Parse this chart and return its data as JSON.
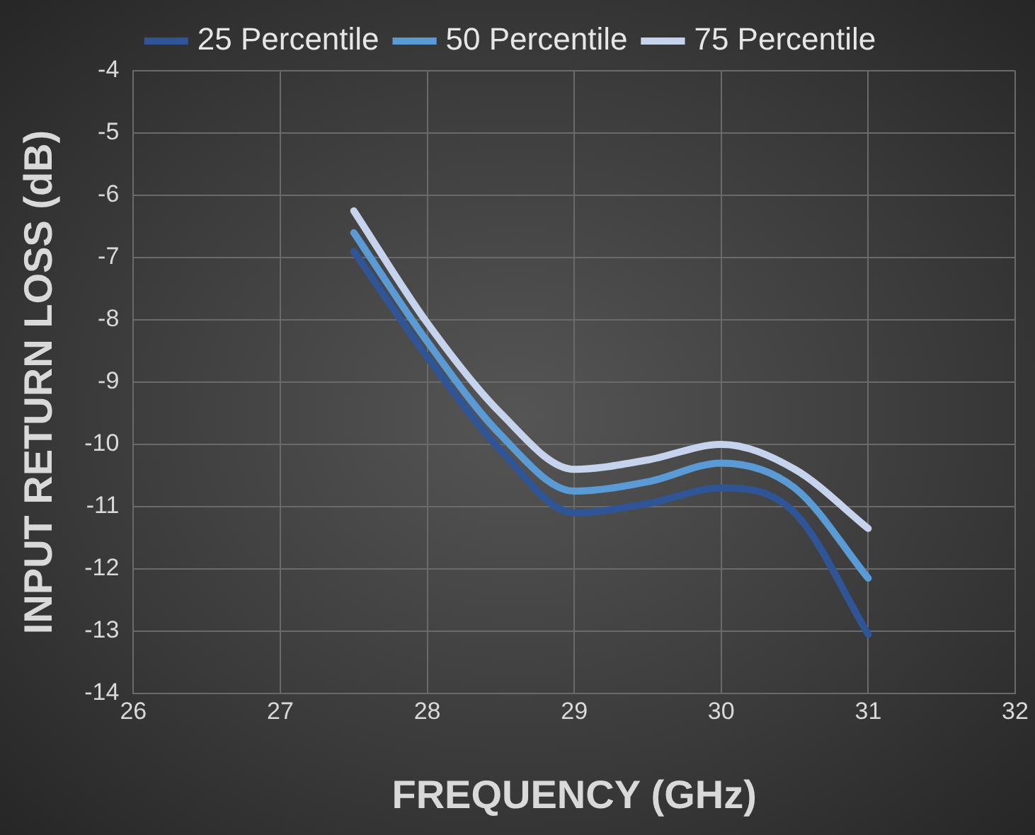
{
  "chart_data": {
    "type": "line",
    "xlabel": "FREQUENCY (GHz)",
    "ylabel": "INPUT RETURN LOSS (dB)",
    "x": [
      27.5,
      28,
      28.5,
      29,
      29.5,
      30,
      30.5,
      31
    ],
    "series": [
      {
        "name": "25 Percentile",
        "color": "#2f5597",
        "values": [
          -6.9,
          -8.6,
          -10.1,
          -11.1,
          -10.95,
          -10.7,
          -11.1,
          -13.05
        ]
      },
      {
        "name": "50 Percentile",
        "color": "#5b9bd5",
        "values": [
          -6.6,
          -8.35,
          -9.85,
          -10.75,
          -10.6,
          -10.3,
          -10.7,
          -12.15
        ]
      },
      {
        "name": "75 Percentile",
        "color": "#c5d3ec",
        "values": [
          -6.25,
          -8.05,
          -9.5,
          -10.4,
          -10.25,
          -10.0,
          -10.4,
          -11.35
        ]
      }
    ],
    "xlim": [
      26,
      32
    ],
    "xticks": [
      26,
      27,
      28,
      29,
      30,
      31,
      32
    ],
    "ylim": [
      -14,
      -4
    ],
    "yticks": [
      -14,
      -13,
      -12,
      -11,
      -10,
      -9,
      -8,
      -7,
      -6,
      -5,
      -4
    ],
    "grid": true,
    "legend": "top",
    "marker": "none",
    "line_style": "solid"
  }
}
